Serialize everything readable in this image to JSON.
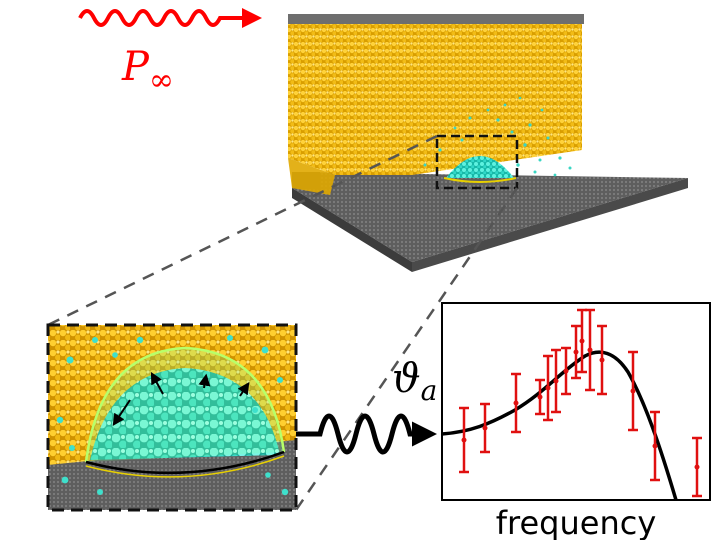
{
  "labels": {
    "pressure_symbol": "P",
    "pressure_subscript": "∞",
    "angle_symbol": "ϑ",
    "angle_subscript": "a",
    "frequency_axis": "frequency"
  },
  "colors": {
    "liquid": "#e8b400",
    "vapor_droplet": "#28e0c8",
    "substrate": "#6a6a6a",
    "wave_in": "#ff0000",
    "wave_out": "#000000",
    "fit_curve": "#000000",
    "error_bars": "#e01010"
  },
  "icons": {
    "incoming_wave": "sine-wave-arrow-icon",
    "outgoing_wave": "sine-wave-arrow-icon"
  }
}
